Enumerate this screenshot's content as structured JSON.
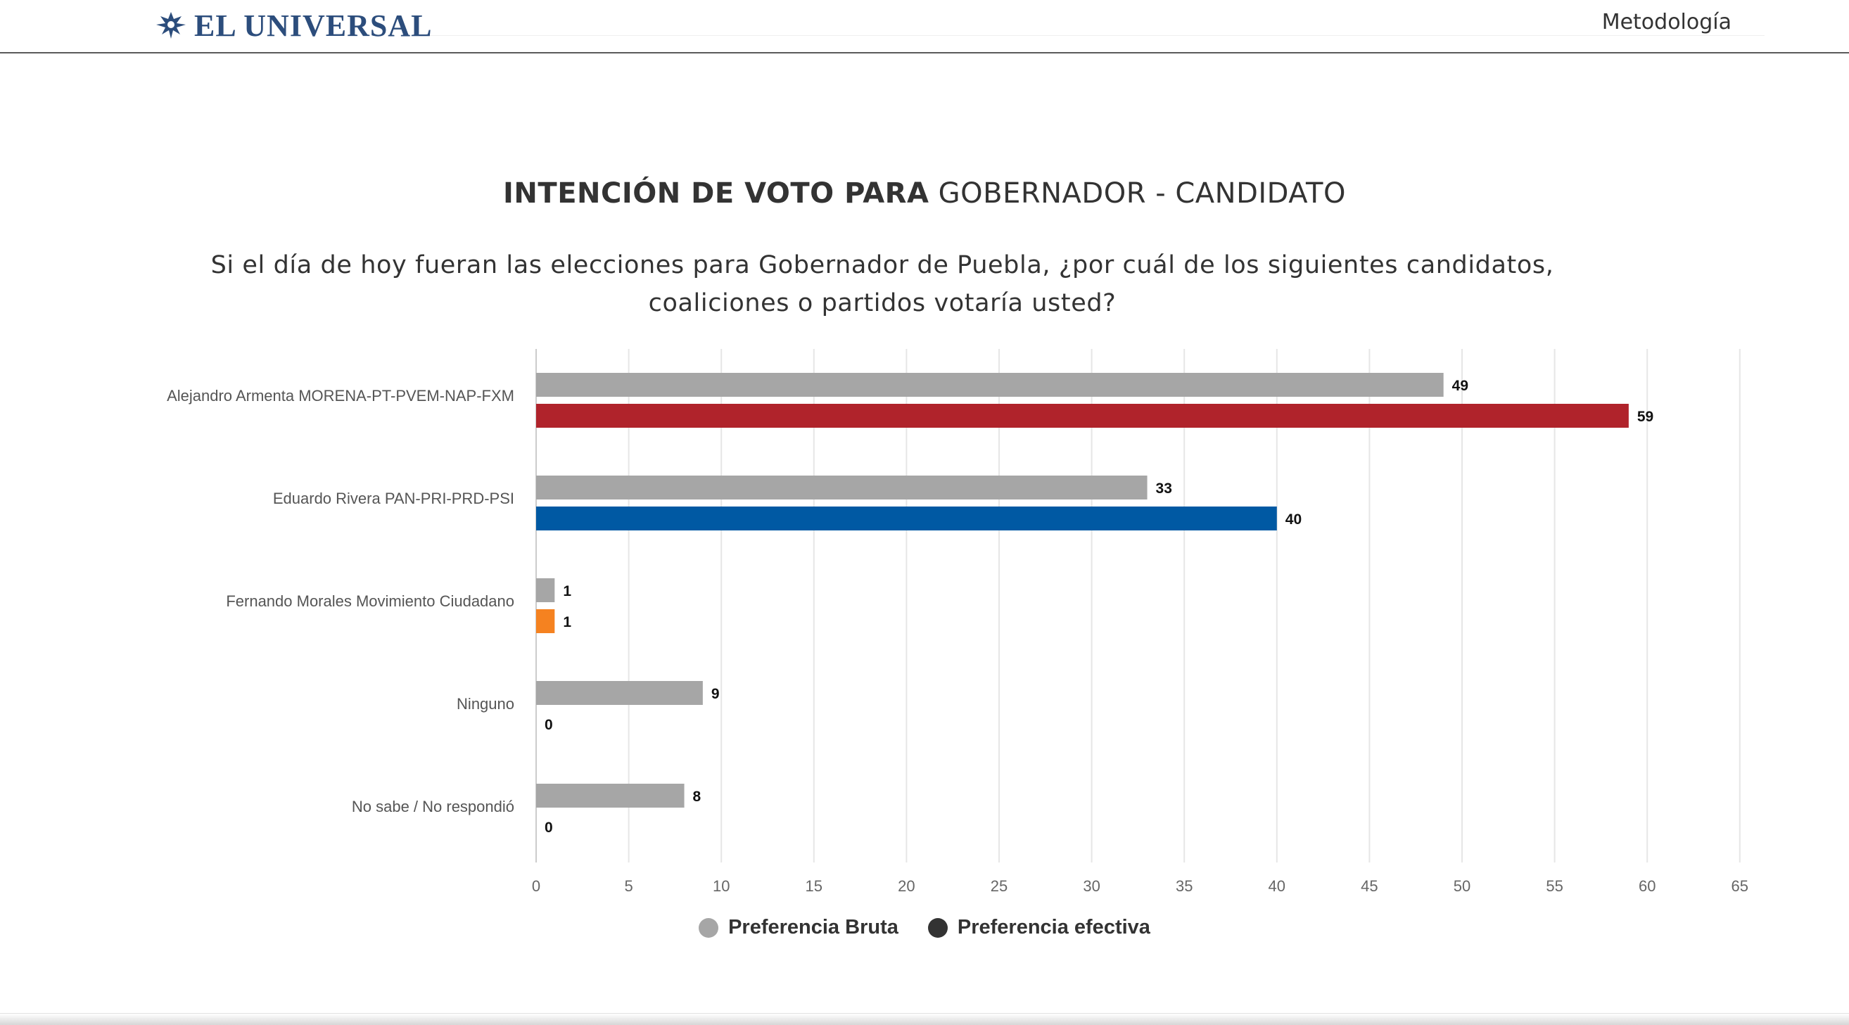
{
  "header": {
    "logo_text": "EL UNIVERSAL",
    "nav_link": "Metodología",
    "brand_color": "#2c4d7c"
  },
  "title": {
    "bold": "INTENCIÓN DE VOTO PARA",
    "normal": "GOBERNADOR - CANDIDATO"
  },
  "question": "Si el día de hoy fueran las elecciones para Gobernador de Puebla, ¿por cuál de los siguientes candidatos, coaliciones o partidos votaría usted?",
  "legend": [
    {
      "label": "Preferencia Bruta",
      "color": "#a6a6a6"
    },
    {
      "label": "Preferencia efectiva",
      "color": "#333333"
    }
  ],
  "chart_data": {
    "type": "bar",
    "orientation": "horizontal",
    "categories": [
      "Alejandro Armenta MORENA-PT-PVEM-NAP-FXM",
      "Eduardo Rivera PAN-PRI-PRD-PSI",
      "Fernando Morales Movimiento Ciudadano",
      "Ninguno",
      "No sabe / No respondió"
    ],
    "series": [
      {
        "name": "Preferencia Bruta",
        "values": [
          49,
          33,
          1,
          9,
          8
        ],
        "colors": [
          "#a6a6a6",
          "#a6a6a6",
          "#a6a6a6",
          "#a6a6a6",
          "#a6a6a6"
        ]
      },
      {
        "name": "Preferencia efectiva",
        "values": [
          59,
          40,
          1,
          0,
          0
        ],
        "colors": [
          "#b0232b",
          "#0059a3",
          "#f58220",
          "#333333",
          "#333333"
        ]
      }
    ],
    "xlim": [
      0,
      65
    ],
    "xticks": [
      0,
      5,
      10,
      15,
      20,
      25,
      30,
      35,
      40,
      45,
      50,
      55,
      60,
      65
    ],
    "grid": true,
    "legend_position": "bottom"
  }
}
